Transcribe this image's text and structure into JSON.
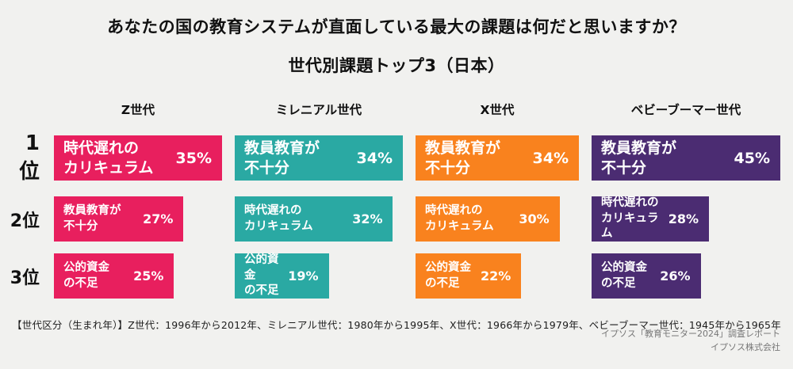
{
  "title": {
    "line1": "あなたの国の教育システムが直面している最大の課題は何だと思いますか？",
    "line2": "世代別課題トップ3（日本）"
  },
  "ranks": [
    "1位",
    "2位",
    "3位"
  ],
  "chart_data": {
    "type": "bar",
    "orientation": "horizontal",
    "unit": "%",
    "title": "あなたの国の教育システムが直面している最大の課題は何だと思いますか？",
    "subtitle": "世代別課題トップ3（日本）",
    "layout": "4 generation columns x 3 rank rows; bar width normalized to each column's max value; value labels inside bars",
    "groups": [
      {
        "generation": "Z世代",
        "color": "#E81F5E",
        "bars": [
          {
            "rank": "1位",
            "label_line1": "時代遅れの",
            "label_line2": "カリキュラム",
            "value": 35,
            "pct_label": "35%"
          },
          {
            "rank": "2位",
            "label_line1": "教員教育が",
            "label_line2": "不十分",
            "value": 27,
            "pct_label": "27%"
          },
          {
            "rank": "3位",
            "label_line1": "公的資金",
            "label_line2": "の不足",
            "value": 25,
            "pct_label": "25%"
          }
        ]
      },
      {
        "generation": "ミレニアル世代",
        "color": "#2AA9A3",
        "bars": [
          {
            "rank": "1位",
            "label_line1": "教員教育が",
            "label_line2": "不十分",
            "value": 34,
            "pct_label": "34%"
          },
          {
            "rank": "2位",
            "label_line1": "時代遅れの",
            "label_line2": "カリキュラム",
            "value": 32,
            "pct_label": "32%"
          },
          {
            "rank": "3位",
            "label_line1": "公的資金",
            "label_line2": "の不足",
            "value": 19,
            "pct_label": "19%"
          }
        ]
      },
      {
        "generation": "X世代",
        "color": "#F9821E",
        "bars": [
          {
            "rank": "1位",
            "label_line1": "教員教育が",
            "label_line2": "不十分",
            "value": 34,
            "pct_label": "34%"
          },
          {
            "rank": "2位",
            "label_line1": "時代遅れの",
            "label_line2": "カリキュラム",
            "value": 30,
            "pct_label": "30%"
          },
          {
            "rank": "3位",
            "label_line1": "公的資金",
            "label_line2": "の不足",
            "value": 22,
            "pct_label": "22%"
          }
        ]
      },
      {
        "generation": "ベビーブーマー世代",
        "color": "#4B2C72",
        "bars": [
          {
            "rank": "1位",
            "label_line1": "教員教育が",
            "label_line2": "不十分",
            "value": 45,
            "pct_label": "45%"
          },
          {
            "rank": "2位",
            "label_line1": "時代遅れの",
            "label_line2": "カリキュラム",
            "value": 28,
            "pct_label": "28%"
          },
          {
            "rank": "3位",
            "label_line1": "公的資金",
            "label_line2": "の不足",
            "value": 26,
            "pct_label": "26%"
          }
        ]
      }
    ]
  },
  "footnote": "【世代区分（生まれ年）】Z世代：1996年から2012年、ミレニアル世代：1980年から1995年、X世代：1966年から1979年、ベビーブーマー世代：1945年から1965年",
  "credit": {
    "line1": "イプソス「教育モニター2024」調査レポート",
    "line2": "イプソス株式会社"
  },
  "colors": {
    "background": "#F1F1EF",
    "title_text": "#111111",
    "bar_text": "#FFFFFF",
    "credit_text": "#777777"
  }
}
